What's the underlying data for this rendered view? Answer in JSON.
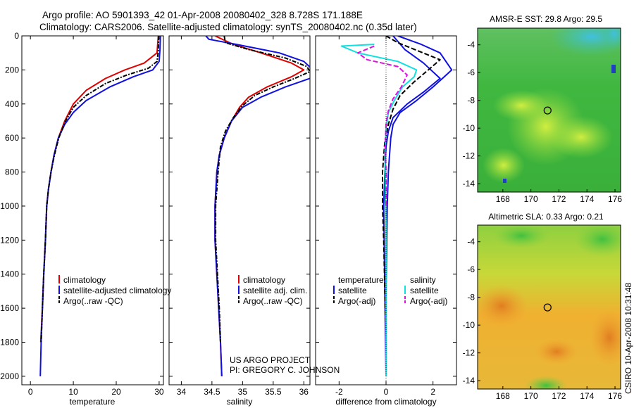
{
  "header": {
    "title_line1": "Argo profile: AO 5901393_42 01-Apr-2008 20080402_328 8.728S 171.188E",
    "title_line2": "Climatology: CARS2006. Satellite-adjusted climatology: synTS_20080402.nc (0.35d later)"
  },
  "credit": {
    "line1": "US ARGO PROJECT",
    "line2": "PI: GREGORY C. JOHNSON"
  },
  "timestamp": "CSIRO 10-Apr-2008 10:31:48",
  "colors": {
    "climatology": "#e00000",
    "satellite": "#1010e0",
    "argo": "#000000",
    "cyan": "#10e0e0",
    "magenta": "#e010e0"
  },
  "chart_data": [
    {
      "type": "line",
      "id": "temperature",
      "xlabel": "temperature",
      "ylabel": "",
      "xlim": [
        -2,
        31
      ],
      "ylim": [
        0,
        2050
      ],
      "y_reversed": true,
      "xticks": [
        "0",
        "10",
        "20",
        "30"
      ],
      "yticks": [
        "0",
        "200",
        "400",
        "600",
        "800",
        "1000",
        "1200",
        "1400",
        "1600",
        "1800",
        "2000"
      ],
      "legend": [
        "climatology",
        "satellite-adjusted climatology",
        "Argo(..raw -QC)"
      ],
      "legend_position": "lower-right",
      "series": [
        {
          "name": "climatology",
          "color": "#e00000",
          "style": "solid",
          "points": [
            [
              29.8,
              0
            ],
            [
              29.5,
              100
            ],
            [
              26.5,
              160
            ],
            [
              22,
              200
            ],
            [
              17.5,
              250
            ],
            [
              13,
              320
            ],
            [
              10,
              400
            ],
            [
              8,
              500
            ],
            [
              6.5,
              600
            ],
            [
              5.5,
              700
            ],
            [
              4.8,
              800
            ],
            [
              4.2,
              900
            ],
            [
              3.8,
              1000
            ],
            [
              3.5,
              1200
            ],
            [
              3.1,
              1400
            ],
            [
              2.8,
              1600
            ],
            [
              2.4,
              1800
            ]
          ]
        },
        {
          "name": "satellite-adjusted climatology",
          "color": "#1010e0",
          "style": "solid",
          "points": [
            [
              30.3,
              0
            ],
            [
              30.2,
              80
            ],
            [
              30,
              150
            ],
            [
              28.5,
              200
            ],
            [
              24,
              240
            ],
            [
              18.5,
              300
            ],
            [
              13,
              380
            ],
            [
              10,
              450
            ],
            [
              8,
              520
            ],
            [
              6.5,
              600
            ],
            [
              5.5,
              700
            ],
            [
              4.8,
              800
            ],
            [
              4.2,
              900
            ],
            [
              3.8,
              1000
            ],
            [
              3.5,
              1200
            ],
            [
              3.1,
              1400
            ],
            [
              2.8,
              1600
            ],
            [
              2.5,
              1800
            ],
            [
              2.3,
              2000
            ]
          ]
        },
        {
          "name": "Argo(..raw -QC)",
          "color": "#000000",
          "style": "dashdot",
          "points": [
            [
              29.9,
              0
            ],
            [
              29.8,
              90
            ],
            [
              29.5,
              150
            ],
            [
              27.5,
              190
            ],
            [
              22.5,
              230
            ],
            [
              17.5,
              280
            ],
            [
              13,
              350
            ],
            [
              10,
              420
            ],
            [
              8.2,
              500
            ],
            [
              6.6,
              600
            ],
            [
              5.6,
              700
            ],
            [
              4.8,
              800
            ],
            [
              4.2,
              900
            ],
            [
              3.8,
              1000
            ],
            [
              3.5,
              1200
            ],
            [
              3.1,
              1400
            ],
            [
              2.8,
              1600
            ],
            [
              2.5,
              1800
            ]
          ]
        }
      ]
    },
    {
      "type": "line",
      "id": "salinity",
      "xlabel": "salinity",
      "ylabel": "",
      "xlim": [
        33.8,
        36.1
      ],
      "ylim": [
        0,
        2050
      ],
      "y_reversed": true,
      "xticks": [
        "34",
        "34.5",
        "35",
        "35.5",
        "36"
      ],
      "legend": [
        "climatology",
        "satellite adj. clim.",
        "Argo(..raw -QC)"
      ],
      "legend_position": "lower-right",
      "series": [
        {
          "name": "climatology",
          "color": "#e00000",
          "style": "solid",
          "points": [
            [
              34.55,
              0
            ],
            [
              34.85,
              50
            ],
            [
              35.3,
              100
            ],
            [
              35.8,
              160
            ],
            [
              36.0,
              200
            ],
            [
              35.8,
              240
            ],
            [
              35.4,
              300
            ],
            [
              35.1,
              360
            ],
            [
              34.95,
              420
            ],
            [
              34.82,
              500
            ],
            [
              34.7,
              600
            ],
            [
              34.62,
              700
            ],
            [
              34.58,
              800
            ],
            [
              34.55,
              1000
            ],
            [
              34.55,
              1200
            ],
            [
              34.58,
              1400
            ],
            [
              34.61,
              1600
            ],
            [
              34.64,
              1800
            ],
            [
              34.66,
              2000
            ]
          ]
        },
        {
          "name": "satellite adj. clim.",
          "color": "#1010e0",
          "style": "solid",
          "points": [
            [
              34.4,
              0
            ],
            [
              34.45,
              20
            ],
            [
              34.9,
              50
            ],
            [
              35.6,
              100
            ],
            [
              36.0,
              150
            ],
            [
              36.15,
              200
            ],
            [
              36.1,
              250
            ],
            [
              35.7,
              300
            ],
            [
              35.3,
              360
            ],
            [
              35.0,
              420
            ],
            [
              34.82,
              500
            ],
            [
              34.7,
              600
            ],
            [
              34.62,
              700
            ],
            [
              34.58,
              800
            ],
            [
              34.55,
              1000
            ],
            [
              34.55,
              1200
            ],
            [
              34.58,
              1400
            ],
            [
              34.61,
              1600
            ],
            [
              34.64,
              1800
            ],
            [
              34.66,
              2000
            ]
          ]
        },
        {
          "name": "Argo(..raw -QC)",
          "color": "#000000",
          "style": "dashdot",
          "points": [
            [
              34.7,
              0
            ],
            [
              34.72,
              40
            ],
            [
              35.1,
              80
            ],
            [
              35.7,
              130
            ],
            [
              36.05,
              180
            ],
            [
              36.1,
              210
            ],
            [
              35.85,
              250
            ],
            [
              35.5,
              300
            ],
            [
              35.2,
              350
            ],
            [
              35.0,
              410
            ],
            [
              34.85,
              480
            ],
            [
              34.72,
              560
            ],
            [
              34.64,
              650
            ],
            [
              34.6,
              800
            ],
            [
              34.56,
              1000
            ],
            [
              34.56,
              1200
            ],
            [
              34.59,
              1400
            ],
            [
              34.62,
              1600
            ],
            [
              34.64,
              1800
            ]
          ]
        }
      ]
    },
    {
      "type": "line",
      "id": "difference",
      "xlabel": "difference from climatology",
      "ylabel": "",
      "xlim": [
        -3,
        3
      ],
      "ylim": [
        0,
        2050
      ],
      "y_reversed": true,
      "xticks": [
        "-2",
        "0",
        "2"
      ],
      "legend": [
        "temperature",
        "satellite",
        "Argo(-adj)",
        "salinity",
        "satellite",
        "Argo(-adj)"
      ],
      "legend_position": "lower",
      "series": [
        {
          "name": "satellite",
          "group": "temperature",
          "color": "#1010e0",
          "style": "solid",
          "points": [
            [
              0.5,
              0
            ],
            [
              1.5,
              50
            ],
            [
              2.3,
              100
            ],
            [
              2.8,
              200
            ],
            [
              2.0,
              300
            ],
            [
              1.3,
              380
            ],
            [
              0.6,
              450
            ],
            [
              0.3,
              520
            ],
            [
              0.2,
              600
            ],
            [
              0.1,
              800
            ],
            [
              0.05,
              1000
            ],
            [
              0,
              1500
            ],
            [
              0,
              2000
            ]
          ]
        },
        {
          "name": "satellite",
          "group": "temperature",
          "color": "#1010e0",
          "style": "solid",
          "points": [
            [
              0.3,
              0
            ],
            [
              0.8,
              80
            ],
            [
              1.6,
              160
            ],
            [
              2.3,
              250
            ],
            [
              1.6,
              330
            ],
            [
              0.9,
              400
            ],
            [
              0.3,
              480
            ],
            [
              0.1,
              560
            ],
            [
              0,
              650
            ],
            [
              -0.05,
              800
            ],
            [
              -0.1,
              1000
            ],
            [
              -0.05,
              1500
            ],
            [
              0,
              2000
            ]
          ]
        },
        {
          "name": "Argo(-adj)",
          "group": "temperature",
          "color": "#000000",
          "style": "dashed",
          "points": [
            [
              0,
              0
            ],
            [
              0.5,
              40
            ],
            [
              1.4,
              90
            ],
            [
              2.3,
              140
            ],
            [
              1.8,
              200
            ],
            [
              1.2,
              270
            ],
            [
              0.6,
              350
            ],
            [
              0.3,
              430
            ],
            [
              0.1,
              520
            ],
            [
              -0.05,
              620
            ],
            [
              -0.15,
              800
            ],
            [
              -0.15,
              1000
            ],
            [
              -0.1,
              1200
            ],
            [
              -0.05,
              1500
            ],
            [
              0,
              1800
            ]
          ]
        },
        {
          "name": "satellite",
          "group": "salinity",
          "color": "#10e0e0",
          "style": "solid",
          "points": [
            [
              -0.5,
              50
            ],
            [
              -1.9,
              60
            ],
            [
              -1.2,
              100
            ],
            [
              0.5,
              150
            ],
            [
              1.3,
              200
            ],
            [
              1.2,
              240
            ],
            [
              0.7,
              300
            ],
            [
              0.35,
              380
            ],
            [
              0.1,
              450
            ],
            [
              0,
              550
            ],
            [
              -0.05,
              700
            ],
            [
              -0.03,
              900
            ],
            [
              0,
              1100
            ],
            [
              0,
              1500
            ],
            [
              0,
              2000
            ]
          ]
        },
        {
          "name": "Argo(-adj)",
          "group": "salinity",
          "color": "#e010e0",
          "style": "dashed",
          "points": [
            [
              -0.5,
              60
            ],
            [
              -1.2,
              100
            ],
            [
              -0.8,
              140
            ],
            [
              0.5,
              180
            ],
            [
              0.9,
              230
            ],
            [
              0.65,
              300
            ],
            [
              0.3,
              370
            ],
            [
              0.1,
              440
            ],
            [
              0,
              520
            ],
            [
              -0.03,
              650
            ],
            [
              0,
              800
            ],
            [
              0,
              1000
            ]
          ]
        }
      ]
    },
    {
      "type": "heatmap",
      "id": "sst",
      "title": "AMSR-E SST: 29.8 Argo: 29.5",
      "xlim": [
        166.2,
        176.4
      ],
      "ylim": [
        -14.6,
        -2.8
      ],
      "xticks": [
        "168",
        "170",
        "172",
        "174",
        "176"
      ],
      "yticks": [
        "-4",
        "-6",
        "-8",
        "-10",
        "-12",
        "-14"
      ],
      "argo_position": [
        171.188,
        -8.728
      ]
    },
    {
      "type": "heatmap",
      "id": "sla",
      "title": "Altimetric SLA: 0.33 Argo: 0.21",
      "xlim": [
        166.2,
        176.4
      ],
      "ylim": [
        -14.6,
        -2.8
      ],
      "xticks": [
        "168",
        "170",
        "172",
        "174",
        "176"
      ],
      "yticks": [
        "-4",
        "-6",
        "-8",
        "-10",
        "-12",
        "-14"
      ],
      "argo_position": [
        171.188,
        -8.728
      ]
    }
  ]
}
